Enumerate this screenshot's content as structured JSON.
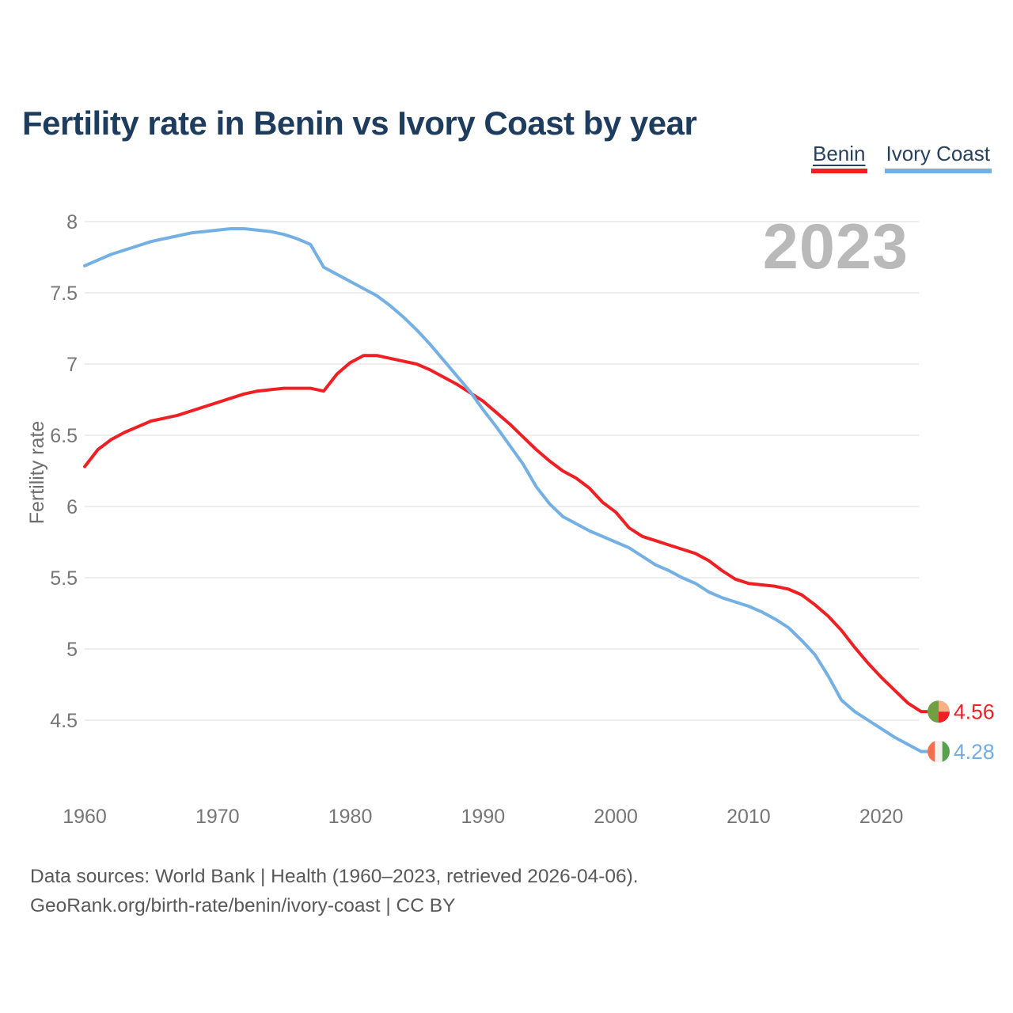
{
  "header": {
    "title": "Fertility rate in Benin vs Ivory Coast by year"
  },
  "legend": {
    "items": [
      {
        "label": "Benin",
        "color": "#ee2024",
        "key": "benin"
      },
      {
        "label": "Ivory Coast",
        "color": "#74b0e4",
        "key": "ivory"
      }
    ]
  },
  "watermark": "2023",
  "chart_data": {
    "type": "line",
    "title": "Fertility rate in Benin vs Ivory Coast by year",
    "xlabel": "",
    "ylabel": "Fertility rate",
    "x_ticks": [
      1960,
      1970,
      1980,
      1990,
      2000,
      2010,
      2020
    ],
    "y_ticks": [
      8,
      7.5,
      7,
      6.5,
      6,
      5.5,
      5,
      4.5
    ],
    "ylim": [
      4.5,
      8
    ],
    "xlim": [
      1960,
      2023
    ],
    "grid": "horizontal",
    "legend_position": "top-right",
    "x": [
      1960,
      1961,
      1962,
      1963,
      1964,
      1965,
      1966,
      1967,
      1968,
      1969,
      1970,
      1971,
      1972,
      1973,
      1974,
      1975,
      1976,
      1977,
      1978,
      1979,
      1980,
      1981,
      1982,
      1983,
      1984,
      1985,
      1986,
      1987,
      1988,
      1989,
      1990,
      1991,
      1992,
      1993,
      1994,
      1995,
      1996,
      1997,
      1998,
      1999,
      2000,
      2001,
      2002,
      2003,
      2004,
      2005,
      2006,
      2007,
      2008,
      2009,
      2010,
      2011,
      2012,
      2013,
      2014,
      2015,
      2016,
      2017,
      2018,
      2019,
      2020,
      2021,
      2022,
      2023
    ],
    "series": [
      {
        "name": "Benin",
        "color": "#ee2024",
        "values": [
          6.28,
          6.4,
          6.47,
          6.52,
          6.56,
          6.6,
          6.62,
          6.64,
          6.67,
          6.7,
          6.73,
          6.76,
          6.79,
          6.81,
          6.82,
          6.83,
          6.83,
          6.83,
          6.81,
          6.93,
          7.01,
          7.06,
          7.06,
          7.04,
          7.02,
          7.0,
          6.96,
          6.91,
          6.86,
          6.8,
          6.74,
          6.66,
          6.58,
          6.49,
          6.4,
          6.32,
          6.25,
          6.2,
          6.13,
          6.03,
          5.96,
          5.85,
          5.79,
          5.76,
          5.73,
          5.7,
          5.67,
          5.62,
          5.55,
          5.49,
          5.46,
          5.45,
          5.44,
          5.42,
          5.38,
          5.31,
          5.23,
          5.13,
          5.01,
          4.9,
          4.8,
          4.71,
          4.62,
          4.56
        ]
      },
      {
        "name": "Ivory Coast",
        "color": "#74b0e4",
        "values": [
          7.69,
          7.73,
          7.77,
          7.8,
          7.83,
          7.86,
          7.88,
          7.9,
          7.92,
          7.93,
          7.94,
          7.95,
          7.95,
          7.94,
          7.93,
          7.91,
          7.88,
          7.84,
          7.68,
          7.63,
          7.58,
          7.53,
          7.48,
          7.41,
          7.33,
          7.24,
          7.14,
          7.03,
          6.92,
          6.81,
          6.68,
          6.56,
          6.43,
          6.3,
          6.14,
          6.02,
          5.93,
          5.88,
          5.83,
          5.79,
          5.75,
          5.71,
          5.65,
          5.59,
          5.55,
          5.5,
          5.46,
          5.4,
          5.36,
          5.33,
          5.3,
          5.26,
          5.21,
          5.15,
          5.06,
          4.96,
          4.81,
          4.64,
          4.56,
          4.5,
          4.44,
          4.38,
          4.33,
          4.28
        ]
      }
    ]
  },
  "end_labels": [
    {
      "series": "Benin",
      "value": "4.56",
      "label_color": "#ee2024",
      "flag": "benin"
    },
    {
      "series": "Ivory Coast",
      "value": "4.28",
      "label_color": "#72ade0",
      "flag": "ivory-coast"
    }
  ],
  "flags": {
    "benin": {
      "green": "#6fa044",
      "yellow": "#f5b183",
      "red": "#ee2024"
    },
    "ivory-coast": {
      "orange": "#f3704e",
      "white": "#f4f2ed",
      "green": "#55a14c"
    }
  },
  "axis_style": {
    "tick_color": "#767676",
    "grid_color": "#e7e7e7"
  },
  "footer": {
    "line1": "Data sources: World Bank | Health (1960–2023, retrieved 2026-04-06).",
    "line2": "GeoRank.org/birth-rate/benin/ivory-coast | CC BY"
  }
}
